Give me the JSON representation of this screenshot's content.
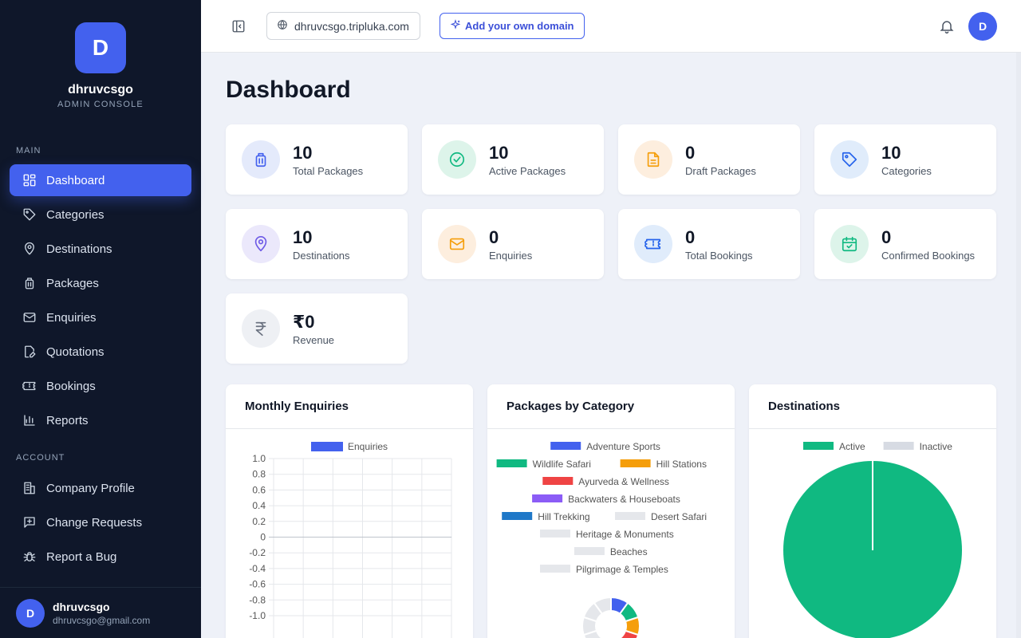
{
  "brand": {
    "initial": "D",
    "name": "dhruvcsgo",
    "subtitle": "ADMIN CONSOLE"
  },
  "sidebar": {
    "main_label": "MAIN",
    "main_items": [
      {
        "label": "Dashboard",
        "icon": "grid-icon",
        "active": true
      },
      {
        "label": "Categories",
        "icon": "tag-icon"
      },
      {
        "label": "Destinations",
        "icon": "map-pin-icon"
      },
      {
        "label": "Packages",
        "icon": "luggage-icon"
      },
      {
        "label": "Enquiries",
        "icon": "mail-icon"
      },
      {
        "label": "Quotations",
        "icon": "file-edit-icon"
      },
      {
        "label": "Bookings",
        "icon": "ticket-icon"
      },
      {
        "label": "Reports",
        "icon": "bar-chart-icon"
      }
    ],
    "account_label": "ACCOUNT",
    "account_items": [
      {
        "label": "Company Profile",
        "icon": "building-icon"
      },
      {
        "label": "Change Requests",
        "icon": "message-plus-icon"
      },
      {
        "label": "Report a Bug",
        "icon": "bug-icon"
      }
    ]
  },
  "user": {
    "initial": "D",
    "name": "dhruvcsgo",
    "email": "dhruvcsgo@gmail.com"
  },
  "topbar": {
    "domain": "dhruvcsgo.tripluka.com",
    "add_domain_label": "Add your own domain",
    "avatar_initial": "D"
  },
  "page": {
    "title": "Dashboard"
  },
  "stats": [
    {
      "value": "10",
      "label": "Total Packages",
      "icon": "luggage-icon",
      "bg": "#e4eafb",
      "fg": "#4361ee"
    },
    {
      "value": "10",
      "label": "Active Packages",
      "icon": "check-circle-icon",
      "bg": "#ddf4ea",
      "fg": "#10b981"
    },
    {
      "value": "0",
      "label": "Draft Packages",
      "icon": "document-icon",
      "bg": "#fdeede",
      "fg": "#f59e0b"
    },
    {
      "value": "10",
      "label": "Categories",
      "icon": "tag-icon",
      "bg": "#e0ecfb",
      "fg": "#2563eb"
    },
    {
      "value": "10",
      "label": "Destinations",
      "icon": "map-pin-icon",
      "bg": "#ebe8fb",
      "fg": "#6d5ae6"
    },
    {
      "value": "0",
      "label": "Enquiries",
      "icon": "mail-icon",
      "bg": "#fdeede",
      "fg": "#f59e0b"
    },
    {
      "value": "0",
      "label": "Total Bookings",
      "icon": "ticket-icon",
      "bg": "#e0ecfb",
      "fg": "#2563eb"
    },
    {
      "value": "0",
      "label": "Confirmed Bookings",
      "icon": "calendar-check-icon",
      "bg": "#ddf4ea",
      "fg": "#10b981"
    },
    {
      "value": "₹0",
      "label": "Revenue",
      "icon": "rupee-icon",
      "bg": "#eef0f4",
      "fg": "#6b7280"
    }
  ],
  "panels": {
    "monthly": "Monthly Enquiries",
    "category": "Packages by Category",
    "destinations": "Destinations"
  },
  "chart_data": [
    {
      "type": "line",
      "legend": [
        "Enquiries"
      ],
      "series": [
        {
          "name": "Enquiries",
          "color": "#4361ee",
          "values": []
        }
      ],
      "yticks": [
        "1.0",
        "0.8",
        "0.6",
        "0.4",
        "0.2",
        "0",
        "-0.2",
        "-0.4",
        "-0.6",
        "-0.8",
        "-1.0"
      ],
      "ylim": [
        -1,
        1
      ],
      "grid": true,
      "legend_position": "top"
    },
    {
      "type": "pie",
      "subtype": "doughnut",
      "legend_position": "top",
      "slices": [
        {
          "label": "Adventure Sports",
          "color": "#4361ee",
          "value": 1
        },
        {
          "label": "Wildlife Safari",
          "color": "#10b981",
          "value": 1
        },
        {
          "label": "Hill Stations",
          "color": "#f59e0b",
          "value": 1
        },
        {
          "label": "Ayurveda & Wellness",
          "color": "#ef4444",
          "value": 1
        },
        {
          "label": "Backwaters & Houseboats",
          "color": "#8b5cf6",
          "value": 1
        },
        {
          "label": "Hill Trekking",
          "color": "#1f78c8",
          "value": 1
        },
        {
          "label": "Desert Safari",
          "color": "#e5e7eb",
          "value": 1
        },
        {
          "label": "Heritage & Monuments",
          "color": "#e5e7eb",
          "value": 1
        },
        {
          "label": "Beaches",
          "color": "#e5e7eb",
          "value": 1
        },
        {
          "label": "Pilgrimage & Temples",
          "color": "#e5e7eb",
          "value": 1
        }
      ]
    },
    {
      "type": "pie",
      "legend_position": "top",
      "slices": [
        {
          "label": "Active",
          "color": "#10b981",
          "value": 10
        },
        {
          "label": "Inactive",
          "color": "#d7dbe3",
          "value": 0
        }
      ]
    }
  ]
}
